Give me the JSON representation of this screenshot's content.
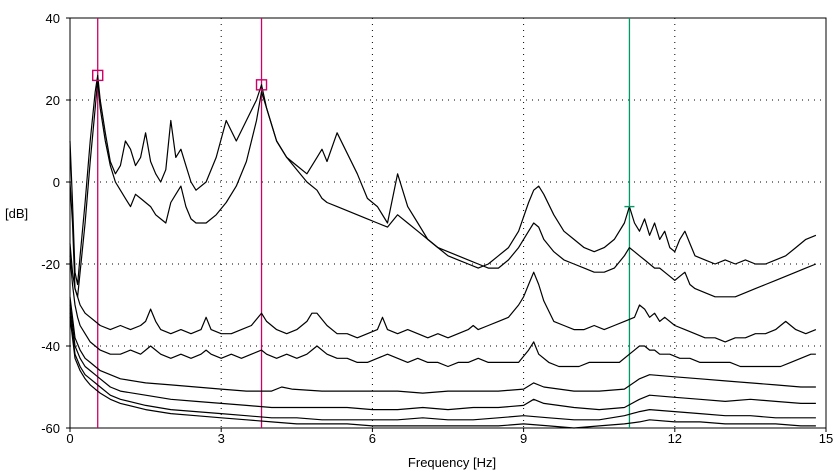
{
  "chart_data": {
    "type": "line",
    "title": "",
    "xlabel": "Frequency [Hz]",
    "ylabel": "[dB]",
    "xlim": [
      0,
      15
    ],
    "ylim": [
      -60,
      40
    ],
    "xticks": [
      0,
      3,
      6,
      9,
      12,
      15
    ],
    "xtick_labels": [
      "0",
      "3",
      "6",
      "9",
      "12",
      "15"
    ],
    "yticks": [
      -60,
      -40,
      -20,
      0,
      20,
      40
    ],
    "ytick_labels": [
      "-60",
      "-40",
      "-20",
      "0",
      "20",
      "40"
    ],
    "grid": true,
    "legend": "none",
    "cursors": [
      {
        "x": 0.55,
        "color": "#cc0066"
      },
      {
        "x": 3.8,
        "color": "#cc0066"
      },
      {
        "x": 11.1,
        "color": "#009966"
      }
    ],
    "markers": [
      {
        "x": 0.55,
        "y": 26,
        "shape": "square",
        "color": "#cc0066"
      },
      {
        "x": 3.8,
        "y": 23.7,
        "shape": "square",
        "color": "#cc0066"
      },
      {
        "x": 11.1,
        "y": -6,
        "shape": "tick",
        "color": "#009966"
      }
    ],
    "series": [
      {
        "x": [
          0,
          0.05,
          0.1,
          0.15,
          0.2,
          0.3,
          0.4,
          0.5,
          0.55,
          0.6,
          0.7,
          0.8,
          0.9,
          1.0,
          1.1,
          1.2,
          1.3,
          1.4,
          1.5,
          1.6,
          1.7,
          1.8,
          1.9,
          2.0,
          2.1,
          2.2,
          2.3,
          2.4,
          2.5,
          2.7,
          2.9,
          3.1,
          3.3,
          3.5,
          3.7,
          3.8,
          3.9,
          4.1,
          4.3,
          4.5,
          4.7,
          4.9,
          5.0,
          5.1,
          5.3,
          5.5,
          5.7,
          5.9,
          6.1,
          6.3,
          6.5,
          6.7,
          6.9,
          7.1,
          7.3,
          7.5,
          7.7,
          7.9,
          8.1,
          8.3,
          8.5,
          8.7,
          8.9,
          9.1,
          9.2,
          9.3,
          9.4,
          9.6,
          9.8,
          10.0,
          10.2,
          10.4,
          10.6,
          10.8,
          11.0,
          11.1,
          11.2,
          11.3,
          11.4,
          11.5,
          11.6,
          11.7,
          11.8,
          11.9,
          12.0,
          12.1,
          12.2,
          12.3,
          12.4,
          12.6,
          12.8,
          13.0,
          13.2,
          13.4,
          13.6,
          13.8,
          14.0,
          14.2,
          14.4,
          14.6,
          14.8
        ],
        "values": [
          10,
          -5,
          -22,
          -25,
          -18,
          -5,
          10,
          22,
          26,
          20,
          12,
          5,
          2,
          4,
          10,
          8,
          4,
          6,
          12,
          5,
          2,
          0,
          3,
          15,
          6,
          8,
          4,
          0,
          -2,
          0,
          6,
          15,
          10,
          15,
          20,
          23.7,
          18,
          10,
          6,
          4,
          2,
          6,
          8,
          5,
          12,
          7,
          2,
          -4,
          -6,
          -10,
          2,
          -6,
          -10,
          -14,
          -16,
          -18,
          -19,
          -20,
          -21,
          -20,
          -18,
          -16,
          -12,
          -5,
          -2,
          -1,
          -3,
          -8,
          -12,
          -14,
          -16,
          -17,
          -16,
          -14,
          -10,
          -6,
          -10,
          -12,
          -9,
          -13,
          -10,
          -14,
          -12,
          -16,
          -17,
          -14,
          -12,
          -15,
          -18,
          -19,
          -20,
          -19,
          -20,
          -19,
          -20,
          -20,
          -19,
          -18,
          -16,
          -14,
          -13
        ]
      },
      {
        "x": [
          0,
          0.05,
          0.1,
          0.15,
          0.2,
          0.3,
          0.4,
          0.5,
          0.55,
          0.6,
          0.7,
          0.8,
          0.9,
          1.0,
          1.1,
          1.2,
          1.3,
          1.4,
          1.5,
          1.6,
          1.7,
          1.8,
          1.9,
          2.0,
          2.1,
          2.2,
          2.3,
          2.4,
          2.5,
          2.7,
          2.9,
          3.1,
          3.3,
          3.5,
          3.7,
          3.8,
          3.9,
          4.1,
          4.3,
          4.5,
          4.7,
          4.9,
          5.0,
          5.1,
          5.3,
          5.5,
          5.7,
          5.9,
          6.1,
          6.3,
          6.5,
          6.7,
          6.9,
          7.1,
          7.3,
          7.5,
          7.7,
          7.9,
          8.1,
          8.3,
          8.5,
          8.7,
          8.9,
          9.1,
          9.2,
          9.3,
          9.4,
          9.6,
          9.8,
          10.0,
          10.2,
          10.4,
          10.6,
          10.8,
          11.0,
          11.1,
          11.2,
          11.3,
          11.4,
          11.5,
          11.6,
          11.7,
          11.8,
          11.9,
          12.0,
          12.1,
          12.2,
          12.3,
          12.4,
          12.6,
          12.8,
          13.0,
          13.2,
          13.4,
          13.6,
          13.8,
          14.0,
          14.2,
          14.4,
          14.6,
          14.8
        ],
        "values": [
          0,
          -10,
          -26,
          -28,
          -22,
          -10,
          5,
          18,
          25,
          18,
          10,
          4,
          0,
          -2,
          -4,
          -6,
          -3,
          -4,
          -5,
          -6,
          -8,
          -9,
          -10,
          -5,
          -3,
          -1,
          -6,
          -9,
          -10,
          -10,
          -8,
          -5,
          -1,
          5,
          15,
          22,
          18,
          10,
          6,
          3,
          0,
          -2,
          -4,
          -5,
          -6,
          -7,
          -8,
          -9,
          -10,
          -11,
          -8,
          -10,
          -12,
          -14,
          -16,
          -17,
          -18,
          -19,
          -20,
          -21,
          -21,
          -19,
          -16,
          -12,
          -10,
          -11,
          -14,
          -17,
          -19,
          -20,
          -21,
          -22,
          -22,
          -21,
          -18,
          -16,
          -17,
          -18,
          -19,
          -20,
          -21,
          -21,
          -22,
          -23,
          -24,
          -23,
          -22,
          -25,
          -26,
          -27,
          -28,
          -28,
          -28,
          -27,
          -26,
          -25,
          -24,
          -23,
          -22,
          -21,
          -20
        ]
      },
      {
        "x": [
          0,
          0.05,
          0.1,
          0.15,
          0.2,
          0.3,
          0.4,
          0.5,
          0.6,
          0.8,
          1.0,
          1.2,
          1.4,
          1.5,
          1.6,
          1.7,
          1.8,
          2.0,
          2.2,
          2.4,
          2.6,
          2.7,
          2.8,
          3.0,
          3.2,
          3.4,
          3.6,
          3.8,
          3.9,
          4.1,
          4.3,
          4.5,
          4.7,
          4.8,
          4.9,
          5.1,
          5.3,
          5.5,
          5.7,
          5.9,
          6.1,
          6.2,
          6.3,
          6.5,
          6.7,
          6.9,
          7.1,
          7.3,
          7.5,
          7.7,
          7.9,
          8.0,
          8.1,
          8.3,
          8.5,
          8.7,
          8.9,
          9.0,
          9.1,
          9.2,
          9.3,
          9.4,
          9.6,
          9.8,
          10.0,
          10.2,
          10.4,
          10.6,
          10.8,
          11.0,
          11.2,
          11.3,
          11.4,
          11.5,
          11.6,
          11.7,
          11.8,
          12.0,
          12.2,
          12.4,
          12.6,
          12.8,
          13.0,
          13.2,
          13.4,
          13.6,
          13.8,
          14.0,
          14.1,
          14.2,
          14.3,
          14.4,
          14.6,
          14.8
        ],
        "values": [
          -15,
          -22,
          -26,
          -28,
          -30,
          -32,
          -33,
          -34,
          -35,
          -36,
          -35,
          -36,
          -35,
          -34,
          -31,
          -34,
          -36,
          -37,
          -36,
          -37,
          -36,
          -33,
          -36,
          -37,
          -37,
          -36,
          -35,
          -32,
          -34,
          -36,
          -37,
          -36,
          -34,
          -32,
          -32,
          -35,
          -37,
          -37,
          -38,
          -37,
          -36,
          -33,
          -36,
          -37,
          -36,
          -37,
          -38,
          -37,
          -38,
          -37,
          -36,
          -35,
          -36,
          -35,
          -34,
          -33,
          -30,
          -28,
          -25,
          -22,
          -25,
          -29,
          -34,
          -35,
          -36,
          -36,
          -35,
          -36,
          -35,
          -34,
          -33,
          -30,
          -31,
          -33,
          -32,
          -34,
          -33,
          -35,
          -36,
          -37,
          -38,
          -38,
          -39,
          -38,
          -38,
          -37,
          -37,
          -36,
          -35,
          -34,
          -35,
          -36,
          -37,
          -36
        ]
      },
      {
        "x": [
          0,
          0.05,
          0.1,
          0.15,
          0.2,
          0.3,
          0.4,
          0.5,
          0.6,
          0.8,
          1.0,
          1.2,
          1.4,
          1.5,
          1.6,
          1.7,
          1.8,
          2.0,
          2.2,
          2.4,
          2.6,
          2.7,
          2.8,
          3.0,
          3.2,
          3.4,
          3.6,
          3.8,
          3.9,
          4.1,
          4.3,
          4.5,
          4.7,
          4.8,
          4.9,
          5.1,
          5.3,
          5.5,
          5.7,
          5.9,
          6.1,
          6.3,
          6.5,
          6.7,
          6.9,
          7.1,
          7.3,
          7.5,
          7.7,
          7.9,
          8.1,
          8.3,
          8.5,
          8.7,
          8.9,
          9.1,
          9.2,
          9.3,
          9.5,
          9.7,
          9.9,
          10.1,
          10.3,
          10.5,
          10.7,
          10.9,
          11.1,
          11.3,
          11.4,
          11.5,
          11.6,
          11.7,
          11.9,
          12.1,
          12.3,
          12.5,
          12.7,
          12.9,
          13.1,
          13.3,
          13.5,
          13.7,
          13.9,
          14.1,
          14.3,
          14.5,
          14.7,
          14.8
        ],
        "values": [
          -18,
          -25,
          -30,
          -33,
          -35,
          -37,
          -39,
          -40,
          -41,
          -42,
          -42,
          -41,
          -42,
          -41,
          -40,
          -41,
          -42,
          -43,
          -42,
          -43,
          -42,
          -41,
          -42,
          -43,
          -42,
          -43,
          -42,
          -41,
          -42,
          -43,
          -42,
          -43,
          -42,
          -41,
          -40,
          -42,
          -43,
          -43,
          -44,
          -44,
          -43,
          -42,
          -43,
          -44,
          -43,
          -44,
          -44,
          -45,
          -44,
          -44,
          -43,
          -44,
          -44,
          -44,
          -44,
          -41,
          -39,
          -42,
          -44,
          -45,
          -45,
          -45,
          -44,
          -44,
          -44,
          -44,
          -42,
          -40,
          -40,
          -41,
          -41,
          -42,
          -42,
          -43,
          -43,
          -44,
          -44,
          -44,
          -44,
          -45,
          -45,
          -45,
          -45,
          -45,
          -44,
          -43,
          -42,
          -42
        ]
      },
      {
        "x": [
          0,
          0.1,
          0.2,
          0.3,
          0.4,
          0.5,
          0.6,
          0.8,
          1.0,
          1.5,
          2.0,
          2.5,
          3.0,
          3.5,
          4.0,
          4.2,
          4.4,
          5.0,
          5.5,
          6.0,
          6.5,
          7.0,
          7.5,
          8.0,
          8.5,
          9.0,
          9.2,
          9.4,
          10.0,
          10.5,
          11.0,
          11.3,
          11.5,
          12.0,
          12.5,
          13.0,
          13.5,
          14.0,
          14.5,
          14.8
        ],
        "values": [
          -28,
          -38,
          -41,
          -43,
          -44,
          -45,
          -46,
          -47,
          -48,
          -49,
          -49.5,
          -50,
          -50.5,
          -51,
          -51,
          -50,
          -50.5,
          -51,
          -51,
          -51,
          -51,
          -51.5,
          -51,
          -51,
          -51,
          -50.5,
          -49,
          -50,
          -51,
          -51,
          -50.5,
          -48,
          -47,
          -47.5,
          -48,
          -48.5,
          -49,
          -49.5,
          -50,
          -50
        ]
      },
      {
        "x": [
          0,
          0.1,
          0.2,
          0.3,
          0.4,
          0.5,
          0.6,
          0.8,
          1.0,
          1.5,
          2.0,
          2.5,
          3.0,
          3.5,
          4.0,
          4.5,
          5.0,
          5.5,
          6.0,
          6.5,
          7.0,
          7.5,
          8.0,
          8.5,
          9.0,
          9.2,
          9.4,
          10.0,
          10.5,
          11.0,
          11.3,
          11.5,
          12.0,
          12.5,
          13.0,
          13.5,
          14.0,
          14.5,
          14.8
        ],
        "values": [
          -30,
          -40,
          -43,
          -45,
          -46,
          -47,
          -48,
          -50,
          -51,
          -52,
          -53,
          -53.5,
          -54,
          -54.5,
          -55,
          -55,
          -55,
          -55,
          -55.5,
          -55.5,
          -55,
          -55.5,
          -55,
          -55,
          -54.5,
          -53,
          -54,
          -55,
          -55.5,
          -55,
          -53,
          -52,
          -52.5,
          -53,
          -53.5,
          -53,
          -53.5,
          -54,
          -54
        ]
      },
      {
        "x": [
          0,
          0.1,
          0.2,
          0.3,
          0.4,
          0.5,
          0.6,
          0.8,
          1.0,
          1.5,
          2.0,
          2.5,
          3.0,
          3.5,
          4.0,
          4.5,
          5.0,
          5.5,
          6.0,
          6.5,
          7.0,
          7.5,
          8.0,
          8.5,
          9.0,
          9.5,
          10.0,
          10.5,
          11.0,
          11.3,
          11.5,
          12.0,
          12.5,
          13.0,
          13.5,
          14.0,
          14.5,
          14.8
        ],
        "values": [
          -32,
          -42,
          -45,
          -47,
          -48,
          -49,
          -50,
          -52,
          -53,
          -54.5,
          -55.5,
          -56,
          -56.5,
          -57,
          -57.5,
          -57.5,
          -58,
          -58,
          -58,
          -58,
          -57.5,
          -58,
          -58,
          -57.5,
          -57,
          -57.5,
          -58,
          -58,
          -57,
          -56,
          -55.5,
          -56,
          -56.5,
          -57,
          -57,
          -57.5,
          -57.5,
          -57.5
        ]
      },
      {
        "x": [
          0,
          0.1,
          0.2,
          0.3,
          0.4,
          0.5,
          0.6,
          0.8,
          1.0,
          1.5,
          2.0,
          2.5,
          3.0,
          3.5,
          4.0,
          4.5,
          5.0,
          5.5,
          6.0,
          6.5,
          7.0,
          7.5,
          8.0,
          8.5,
          9.0,
          9.5,
          10.0,
          10.5,
          11.0,
          11.3,
          11.5,
          12.0,
          12.5,
          13.0,
          13.5,
          14.0,
          14.5,
          14.8
        ],
        "values": [
          -33,
          -43,
          -46,
          -48,
          -49.5,
          -50.5,
          -51.5,
          -53,
          -54,
          -55.5,
          -56.5,
          -57,
          -57.5,
          -58,
          -58.5,
          -59,
          -59,
          -59,
          -59.5,
          -59.5,
          -59.5,
          -59.5,
          -59.5,
          -59.5,
          -59,
          -59.5,
          -60,
          -59.5,
          -59,
          -58.5,
          -58,
          -58.5,
          -58.5,
          -59,
          -59,
          -59,
          -59.5,
          -59.5
        ]
      }
    ]
  }
}
